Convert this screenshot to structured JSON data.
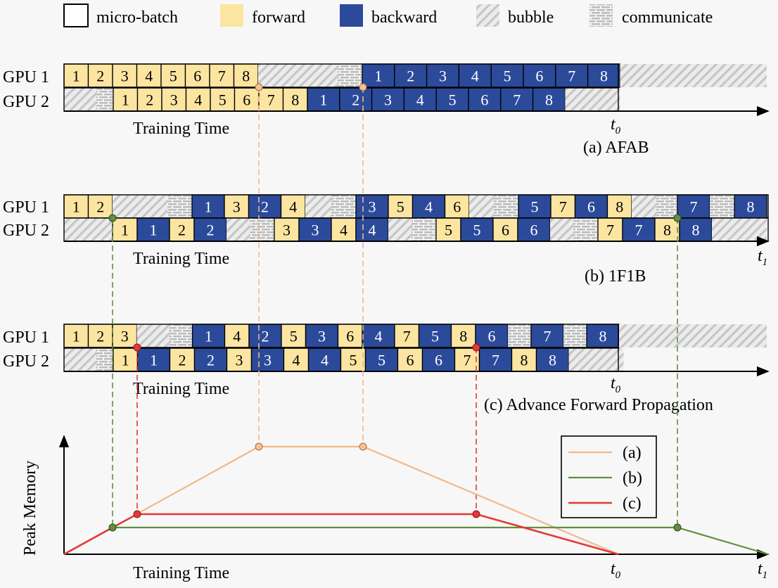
{
  "legend": {
    "items": [
      {
        "key": "micro",
        "label": "micro-batch"
      },
      {
        "key": "fwd",
        "label": "forward"
      },
      {
        "key": "bwd",
        "label": "backward"
      },
      {
        "key": "bubble",
        "label": "bubble"
      },
      {
        "key": "comm",
        "label": "communicate"
      }
    ]
  },
  "colors": {
    "forward": "#fbe5a1",
    "backward": "#2c4a9a",
    "bubble_stripe": "#c9c9c9",
    "comm": "#bdbdbd",
    "line_a": "#f0b88a",
    "line_b": "#5f8f3f",
    "line_c": "#e53935",
    "dash_a": "#f0b88a",
    "dash_b": "#5f8f3f",
    "dash_c": "#e53935"
  },
  "gpu_labels": [
    "GPU 1",
    "GPU 2"
  ],
  "panel_a": {
    "caption": "(a) AFAB",
    "axis_label": "Training Time",
    "t_label_base": "t",
    "t_label_sub": "0",
    "gpu1": [
      "f:1",
      "f:2",
      "f:3",
      "f:4",
      "f:5",
      "f:6",
      "f:7",
      "f:8",
      "bub",
      "comm",
      "b:1",
      "b:2",
      "b:3",
      "b:4",
      "b:5",
      "b:6",
      "b:7",
      "b:8",
      "bub"
    ],
    "gpu2": [
      "bub",
      "comm",
      "f:1",
      "f:2",
      "f:3",
      "f:4",
      "f:5",
      "f:6",
      "f:7",
      "f:8",
      "b:1",
      "b:2",
      "b:3",
      "b:4",
      "b:5",
      "b:6",
      "b:7",
      "b:8",
      "bub"
    ]
  },
  "panel_b": {
    "caption": "(b) 1F1B",
    "axis_label": "Training Time",
    "t_label_base": "t",
    "t_label_sub": "1",
    "gpu1": [
      "f:1",
      "f:2",
      "bub",
      "comm",
      "b:1",
      "f:3",
      "b:2",
      "f:4",
      "bub",
      "comm",
      "b:3",
      "f:5",
      "b:4",
      "f:6",
      "bub",
      "comm",
      "b:5",
      "f:7",
      "b:6",
      "f:8",
      "bub",
      "comm",
      "b:7",
      "comm",
      "b:8"
    ],
    "gpu2": [
      "bub",
      "f:1",
      "b:1",
      "f:2",
      "b:2",
      "bub",
      "comm",
      "f:3",
      "b:3",
      "f:4",
      "b:4",
      "bub",
      "comm",
      "f:5",
      "b:5",
      "f:6",
      "b:6",
      "bub",
      "comm",
      "f:7",
      "b:7",
      "f:8",
      "b:8",
      "bub"
    ]
  },
  "panel_c": {
    "caption": "(c) Advance Forward Propagation",
    "axis_label": "Training Time",
    "t_label_base": "t",
    "t_label_sub": "0",
    "gpu1": [
      "f:1",
      "f:2",
      "f:3",
      "bub",
      "comm",
      "b:1",
      "f:4",
      "b:2",
      "f:5",
      "b:3",
      "f:6",
      "b:4",
      "f:7",
      "b:5",
      "f:8",
      "b:6",
      "comm",
      "b:7",
      "comm",
      "b:8",
      "bub"
    ],
    "gpu2": [
      "bub",
      "comm",
      "f:1",
      "b:1",
      "f:2",
      "b:2",
      "f:3",
      "b:3",
      "f:4",
      "b:4",
      "f:5",
      "b:5",
      "f:6",
      "b:6",
      "f:7",
      "b:7",
      "f:8",
      "b:8",
      "bub"
    ]
  },
  "memory_plot": {
    "ylabel": "Peak Memory",
    "xlabel": "Training Time",
    "t0_base": "t",
    "t0_sub": "0",
    "t1_base": "t",
    "t1_sub": "1",
    "legend": [
      "(a)",
      "(b)",
      "(c)"
    ]
  }
}
